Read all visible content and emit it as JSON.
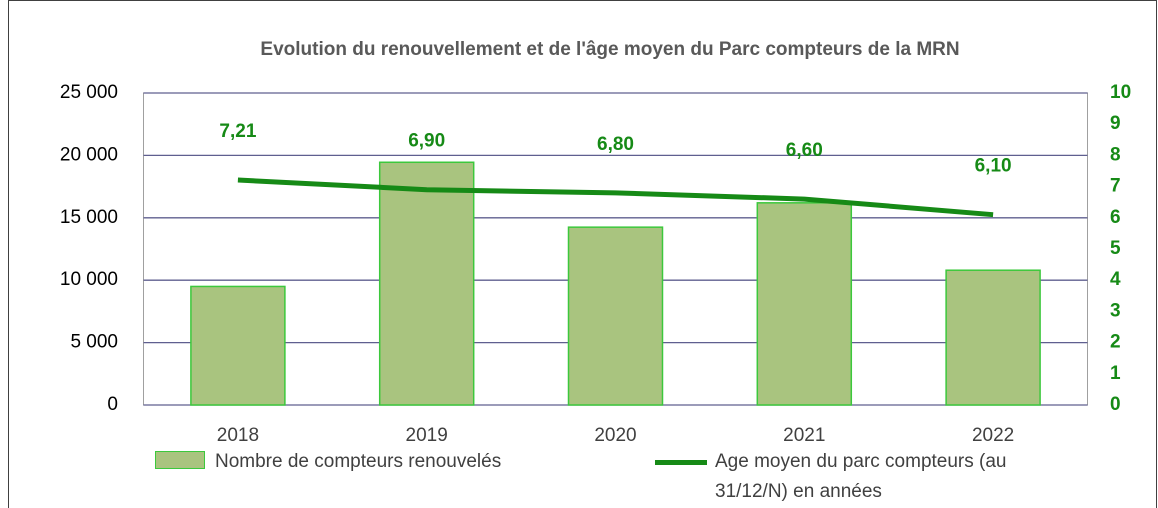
{
  "chart_data": {
    "type": "bar",
    "title": "Evolution du renouvellement et de l'âge moyen du Parc compteurs de la MRN",
    "categories": [
      "2018",
      "2019",
      "2020",
      "2021",
      "2022"
    ],
    "series": [
      {
        "name": "Nombre de compteurs renouvelés",
        "type": "bar",
        "color": "#a9c47f",
        "edge": "#3cc83c",
        "values": [
          9500,
          19450,
          14250,
          16200,
          10800
        ]
      },
      {
        "name": "Age moyen du parc compteurs (au 31/12/N) en années",
        "type": "line",
        "axis": "y2",
        "color": "#168a16",
        "values": [
          7.21,
          6.9,
          6.8,
          6.6,
          6.1
        ],
        "value_labels": [
          "7,21",
          "6,90",
          "6,80",
          "6,60",
          "6,10"
        ]
      }
    ],
    "ylim": [
      0,
      25000
    ],
    "yticks": [
      0,
      {
        "value": 5000,
        "label": "5 000"
      },
      {
        "value": 10000,
        "label": "10 000"
      },
      {
        "value": 15000,
        "label": "15 000"
      },
      {
        "value": 20000,
        "label": "20 000"
      },
      {
        "value": 25000,
        "label": "25 000"
      }
    ],
    "y2lim": [
      0,
      10
    ],
    "y2ticks": [
      0,
      1,
      2,
      3,
      4,
      5,
      6,
      7,
      8,
      9,
      10
    ],
    "grid": true,
    "legend": "bottom"
  }
}
